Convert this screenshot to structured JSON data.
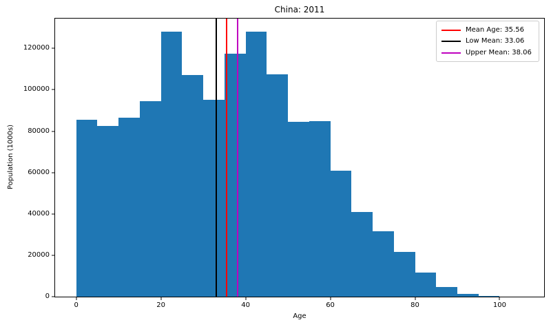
{
  "chart_data": {
    "type": "bar",
    "subtype": "histogram",
    "title": "China: 2011",
    "xlabel": "Age",
    "ylabel": "Population (1000s)",
    "bar_color": "#1f77b4",
    "background_color": "#ffffff",
    "grid": false,
    "legend_position": "upper right",
    "bin_edges": [
      0,
      5,
      10,
      15,
      20,
      25,
      30,
      35,
      40,
      45,
      50,
      55,
      60,
      65,
      70,
      75,
      80,
      85,
      90,
      95,
      100
    ],
    "values": [
      85500,
      82500,
      86500,
      94500,
      128000,
      107000,
      95000,
      117500,
      128000,
      107500,
      84500,
      85000,
      61000,
      41000,
      31500,
      21500,
      11500,
      4500,
      1300,
      300
    ],
    "xlim": [
      -5,
      110.5
    ],
    "ylim": [
      0,
      134400
    ],
    "xticks": [
      0,
      20,
      40,
      60,
      80,
      100
    ],
    "yticks": [
      0,
      20000,
      40000,
      60000,
      80000,
      100000,
      120000
    ],
    "vlines": [
      {
        "name": "mean-age-line",
        "x": 35.56,
        "color": "#ff0000",
        "label": "Mean Age: 35.56"
      },
      {
        "name": "low-mean-line",
        "x": 33.06,
        "color": "#000000",
        "label": "Low Mean: 33.06"
      },
      {
        "name": "upper-mean-line",
        "x": 38.06,
        "color": "#bf00bf",
        "label": "Upper Mean: 38.06"
      }
    ]
  }
}
